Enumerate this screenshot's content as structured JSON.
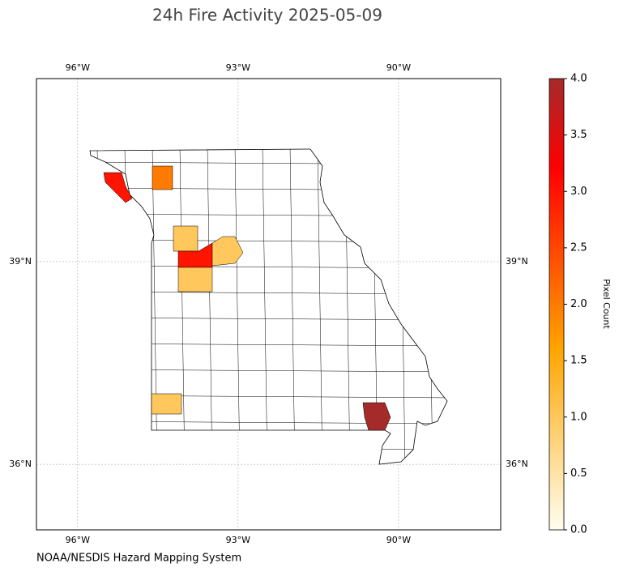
{
  "chart_data": {
    "type": "choropleth",
    "title": "24h Fire Activity 2025-05-09",
    "source": "NOAA/NESDIS Hazard Mapping System",
    "xlim": [
      -96.77,
      -88.09
    ],
    "ylim": [
      35.03,
      41.71
    ],
    "xticks": [
      {
        "value": -96,
        "label": "96°W"
      },
      {
        "value": -93,
        "label": "93°W"
      },
      {
        "value": -90,
        "label": "90°W"
      }
    ],
    "yticks": [
      {
        "value": 39,
        "label": "39°N"
      },
      {
        "value": 36,
        "label": "36°N"
      }
    ],
    "grid": true,
    "values": [
      3,
      2,
      1,
      3,
      1,
      1,
      1,
      4
    ],
    "colorbar": {
      "label": "Pixel Count",
      "lim": [
        0,
        4
      ],
      "ticks": [
        {
          "value": 0,
          "label": "0.0"
        },
        {
          "value": 0.5,
          "label": "0.5"
        },
        {
          "value": 1,
          "label": "1.0"
        },
        {
          "value": 1.5,
          "label": "1.5"
        },
        {
          "value": 2,
          "label": "2.0"
        },
        {
          "value": 2.5,
          "label": "2.5"
        },
        {
          "value": 3,
          "label": "3.0"
        },
        {
          "value": 3.5,
          "label": "3.5"
        },
        {
          "value": 4,
          "label": "4.0"
        }
      ],
      "colors": [
        "#fffef0",
        "#ffd27a",
        "#ffa500",
        "#ff5000",
        "#ff0000",
        "#a52a2a"
      ]
    }
  }
}
